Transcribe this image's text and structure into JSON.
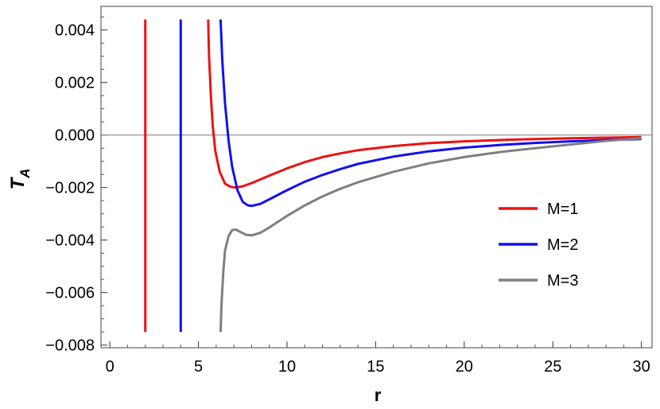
{
  "chart_data": {
    "type": "line",
    "xlabel": "r",
    "ylabel": "T",
    "ylabel_sub": "A",
    "xlim": [
      -0.5,
      30.6
    ],
    "ylim": [
      -0.0081,
      0.0049
    ],
    "x_ticks": [
      0,
      5,
      10,
      15,
      20,
      25,
      30
    ],
    "x_tick_labels": [
      "0",
      "5",
      "10",
      "15",
      "20",
      "25",
      "30"
    ],
    "y_ticks": [
      0.004,
      0.002,
      0.0,
      -0.002,
      -0.004,
      -0.006,
      -0.008
    ],
    "y_tick_labels": [
      "0.004",
      "0.002",
      "0.000",
      "−0.002",
      "−0.004",
      "−0.006",
      "−0.008"
    ],
    "zero_line": true,
    "grid": false,
    "legend_position": "right",
    "series": [
      {
        "name": "M=1",
        "color": "#ee1111",
        "segments": [
          [
            [
              2.0,
              0.0044
            ],
            [
              2.0,
              -0.0075
            ]
          ],
          [
            [
              5.55,
              0.0044
            ],
            [
              5.6,
              0.003
            ],
            [
              5.7,
              0.0015
            ],
            [
              5.8,
              0.0004
            ],
            [
              5.95,
              -0.0006
            ],
            [
              6.2,
              -0.0014
            ],
            [
              6.5,
              -0.00185
            ],
            [
              6.8,
              -0.00197
            ],
            [
              7.1,
              -0.002
            ],
            [
              7.5,
              -0.00195
            ],
            [
              8.0,
              -0.00183
            ],
            [
              9.0,
              -0.00155
            ],
            [
              10.0,
              -0.00127
            ],
            [
              11.0,
              -0.00103
            ],
            [
              12.0,
              -0.00084
            ],
            [
              13.0,
              -0.0007
            ],
            [
              14.0,
              -0.00058
            ],
            [
              16.0,
              -0.00042
            ],
            [
              18.0,
              -0.00031
            ],
            [
              20.0,
              -0.00024
            ],
            [
              22.0,
              -0.00019
            ],
            [
              24.0,
              -0.00015
            ],
            [
              26.0,
              -0.00012
            ],
            [
              28.0,
              -0.0001
            ],
            [
              30.0,
              -8e-05
            ]
          ]
        ]
      },
      {
        "name": "M=2",
        "color": "#1111ee",
        "segments": [
          [
            [
              4.0,
              0.0044
            ],
            [
              4.0,
              -0.0075
            ]
          ],
          [
            [
              6.25,
              0.0044
            ],
            [
              6.35,
              0.0028
            ],
            [
              6.5,
              0.0012
            ],
            [
              6.7,
              -0.0002
            ],
            [
              6.9,
              -0.0012
            ],
            [
              7.2,
              -0.0021
            ],
            [
              7.5,
              -0.00255
            ],
            [
              7.8,
              -0.00268
            ],
            [
              8.0,
              -0.0027
            ],
            [
              8.5,
              -0.00262
            ],
            [
              9.0,
              -0.00245
            ],
            [
              10.0,
              -0.0021
            ],
            [
              11.0,
              -0.00178
            ],
            [
              12.0,
              -0.00152
            ],
            [
              13.0,
              -0.0013
            ],
            [
              14.0,
              -0.0011
            ],
            [
              16.0,
              -0.00082
            ],
            [
              18.0,
              -0.00062
            ],
            [
              20.0,
              -0.00048
            ],
            [
              22.0,
              -0.00038
            ],
            [
              24.0,
              -0.0003
            ],
            [
              26.0,
              -0.00024
            ],
            [
              28.0,
              -0.00019
            ],
            [
              30.0,
              -0.00015
            ]
          ]
        ]
      },
      {
        "name": "M=3",
        "color": "#7f7f7f",
        "segments": [
          [
            [
              6.25,
              -0.0075
            ],
            [
              6.3,
              -0.0065
            ],
            [
              6.4,
              -0.0052
            ],
            [
              6.5,
              -0.0044
            ],
            [
              6.7,
              -0.00385
            ],
            [
              6.9,
              -0.00362
            ],
            [
              7.1,
              -0.0036
            ],
            [
              7.4,
              -0.0037
            ],
            [
              7.7,
              -0.0038
            ],
            [
              8.0,
              -0.00382
            ],
            [
              8.5,
              -0.00372
            ],
            [
              9.0,
              -0.00352
            ],
            [
              10.0,
              -0.00308
            ],
            [
              11.0,
              -0.00268
            ],
            [
              12.0,
              -0.00234
            ],
            [
              13.0,
              -0.00205
            ],
            [
              14.0,
              -0.0018
            ],
            [
              16.0,
              -0.0014
            ],
            [
              18.0,
              -0.00108
            ],
            [
              20.0,
              -0.00084
            ],
            [
              22.0,
              -0.00065
            ],
            [
              24.0,
              -0.0005
            ],
            [
              26.0,
              -0.00036
            ],
            [
              28.0,
              -0.00022
            ],
            [
              30.0,
              -0.00012
            ]
          ]
        ]
      }
    ]
  }
}
